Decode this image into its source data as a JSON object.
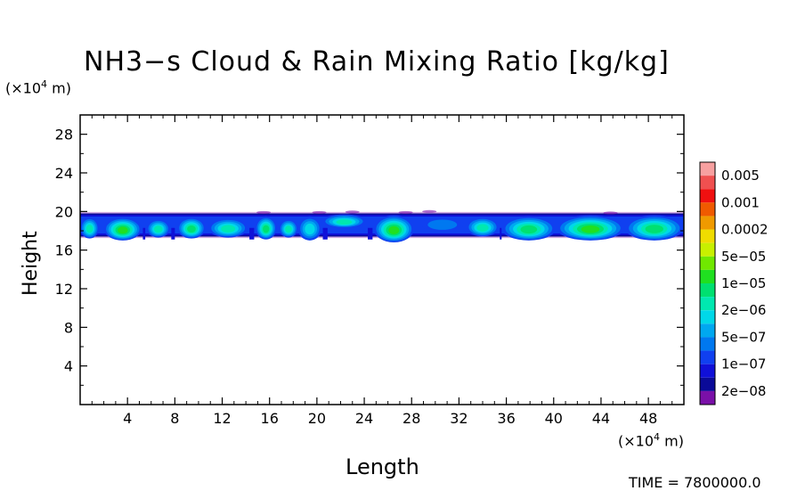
{
  "chart_data": {
    "type": "heatmap",
    "title": "NH3−s Cloud & Rain Mixing Ratio [kg/kg]",
    "xlabel": "Length",
    "ylabel": "Height",
    "x_unit": "(×10⁴ m)",
    "y_unit": "(×10⁴ m)",
    "xlim": [
      0,
      51
    ],
    "ylim": [
      0,
      30
    ],
    "x_ticks": [
      4,
      8,
      12,
      16,
      20,
      24,
      28,
      32,
      36,
      40,
      44,
      48
    ],
    "y_ticks": [
      4,
      8,
      12,
      16,
      20,
      24,
      28
    ],
    "grid": false,
    "legend_position": "right",
    "colorbar": {
      "levels": [
        {
          "label": "0.005",
          "color": "#f7a0a0"
        },
        {
          "label": "",
          "color": "#f05050"
        },
        {
          "label": "0.001",
          "color": "#f01010"
        },
        {
          "label": "",
          "color": "#f05a00"
        },
        {
          "label": "0.0002",
          "color": "#f09a00"
        },
        {
          "label": "",
          "color": "#f0dc00"
        },
        {
          "label": "5e−05",
          "color": "#c8f000"
        },
        {
          "label": "",
          "color": "#70e800"
        },
        {
          "label": "1e−05",
          "color": "#20e020"
        },
        {
          "label": "",
          "color": "#00e070"
        },
        {
          "label": "2e−06",
          "color": "#00e8b0"
        },
        {
          "label": "",
          "color": "#00d8e8"
        },
        {
          "label": "5e−07",
          "color": "#00a8f0"
        },
        {
          "label": "",
          "color": "#0078f0"
        },
        {
          "label": "1e−07",
          "color": "#1040f0"
        },
        {
          "label": "",
          "color": "#1010d8"
        },
        {
          "label": "2e−08",
          "color": "#0a0a98"
        },
        {
          "label": "",
          "color": "#7a10a8"
        }
      ]
    },
    "band": {
      "y_bottom": 17.0,
      "y_top": 19.8
    },
    "cloud_cells": [
      {
        "x0": 0.0,
        "x1": 1.6,
        "ymin": 17.2,
        "ymax": 19.4,
        "core": 0.55
      },
      {
        "x0": 2.0,
        "x1": 5.2,
        "ymin": 17.0,
        "ymax": 19.4,
        "core": 0.75
      },
      {
        "x0": 5.6,
        "x1": 7.6,
        "ymin": 17.3,
        "ymax": 19.2,
        "core": 0.55
      },
      {
        "x0": 8.2,
        "x1": 10.6,
        "ymin": 17.2,
        "ymax": 19.4,
        "core": 0.65
      },
      {
        "x0": 10.8,
        "x1": 14.2,
        "ymin": 17.3,
        "ymax": 19.3,
        "core": 0.55
      },
      {
        "x0": 14.8,
        "x1": 16.6,
        "ymin": 17.1,
        "ymax": 19.5,
        "core": 0.7
      },
      {
        "x0": 16.8,
        "x1": 18.4,
        "ymin": 17.3,
        "ymax": 19.2,
        "core": 0.6
      },
      {
        "x0": 18.4,
        "x1": 20.4,
        "ymin": 17.0,
        "ymax": 19.5,
        "core": 0.45
      },
      {
        "x0": 20.4,
        "x1": 24.2,
        "ymin": 18.3,
        "ymax": 19.7,
        "core": 0.6
      },
      {
        "x0": 24.8,
        "x1": 28.2,
        "ymin": 16.8,
        "ymax": 19.6,
        "core": 0.8
      },
      {
        "x0": 28.8,
        "x1": 32.4,
        "ymin": 17.9,
        "ymax": 19.4,
        "core": 0.2
      },
      {
        "x0": 32.6,
        "x1": 35.4,
        "ymin": 17.4,
        "ymax": 19.4,
        "core": 0.6
      },
      {
        "x0": 35.6,
        "x1": 40.2,
        "ymin": 17.0,
        "ymax": 19.5,
        "core": 0.7
      },
      {
        "x0": 40.2,
        "x1": 46.0,
        "ymin": 17.0,
        "ymax": 19.6,
        "core": 0.75
      },
      {
        "x0": 46.0,
        "x1": 51.0,
        "ymin": 17.0,
        "ymax": 19.6,
        "core": 0.7
      }
    ]
  },
  "time_label": "TIME = 7800000.0"
}
